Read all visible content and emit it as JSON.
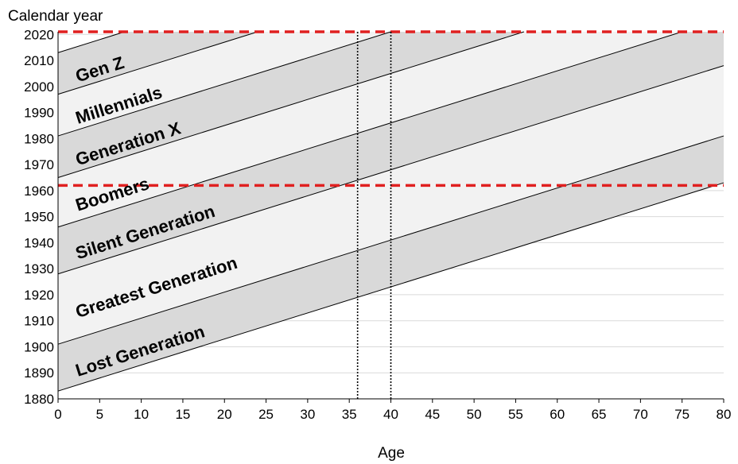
{
  "chart_data": {
    "type": "area",
    "xlabel": "Age",
    "ylabel": "Calendar year",
    "xlim": [
      0,
      80
    ],
    "ylim": [
      1880,
      2021
    ],
    "x_ticks": [
      "0",
      "5",
      "10",
      "15",
      "20",
      "25",
      "30",
      "35",
      "40",
      "45",
      "50",
      "55",
      "60",
      "65",
      "70",
      "75",
      "80"
    ],
    "y_ticks": [
      "1880",
      "1890",
      "1900",
      "1910",
      "1920",
      "1930",
      "1940",
      "1950",
      "1960",
      "1970",
      "1980",
      "1990",
      "2000",
      "2010",
      "2020"
    ],
    "grid": "horizontal",
    "boundary_birth_years": [
      1883,
      1901,
      1928,
      1946,
      1965,
      1981,
      1997,
      2013
    ],
    "generations": [
      {
        "name": "Lost Generation",
        "birth_start": 1883,
        "birth_end": 1900
      },
      {
        "name": "Greatest Generation",
        "birth_start": 1901,
        "birth_end": 1927
      },
      {
        "name": "Silent Generation",
        "birth_start": 1928,
        "birth_end": 1945
      },
      {
        "name": "Boomers",
        "birth_start": 1946,
        "birth_end": 1964
      },
      {
        "name": "Generation X",
        "birth_start": 1965,
        "birth_end": 1980
      },
      {
        "name": "Millennials",
        "birth_start": 1981,
        "birth_end": 1996
      },
      {
        "name": "Gen Z",
        "birth_start": 1997,
        "birth_end": 2012
      }
    ],
    "reference_lines": [
      {
        "orientation": "horizontal",
        "value": 1962,
        "style": "dashed",
        "color": "#e02020"
      },
      {
        "orientation": "horizontal",
        "value": 2021,
        "style": "dashed",
        "color": "#e02020"
      },
      {
        "orientation": "vertical",
        "value": 36,
        "style": "dotted",
        "color": "#000000"
      },
      {
        "orientation": "vertical",
        "value": 40,
        "style": "dotted",
        "color": "#000000"
      }
    ],
    "colors": {
      "band_dark": "#d9d9d9",
      "band_light": "#f2f2f2",
      "grid": "#d9d9d9",
      "reference_red": "#e02020"
    }
  }
}
